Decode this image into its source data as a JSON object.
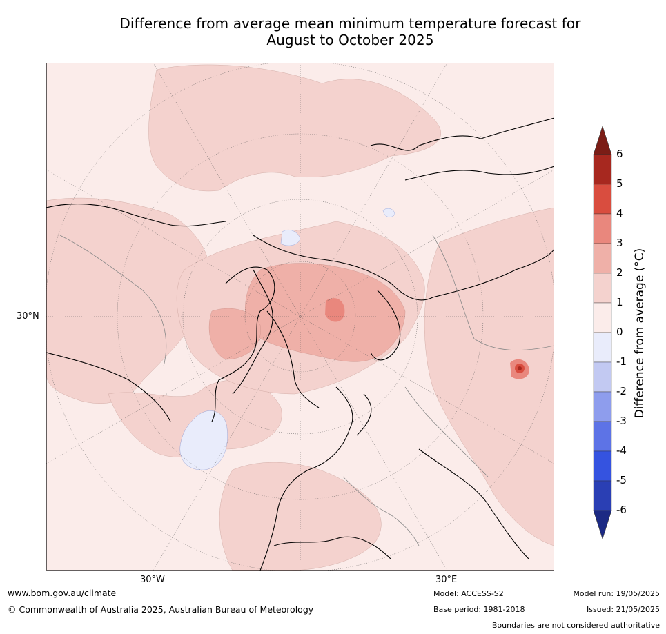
{
  "title_line1": "Difference from average mean minimum temperature forecast for",
  "title_line2": "August to October 2025",
  "map": {
    "lat_label": "30°N",
    "lon_label_w": "30°W",
    "lon_label_e": "30°E"
  },
  "colorbar": {
    "title": "Difference from average (°C)",
    "ticks": [
      "6",
      "5",
      "4",
      "3",
      "2",
      "1",
      "0",
      "-1",
      "-2",
      "-3",
      "-4",
      "-5",
      "-6"
    ],
    "colors": [
      "#a7281f",
      "#d94d3f",
      "#e9877d",
      "#efb0a8",
      "#f4d2ce",
      "#fbecea",
      "#e9ecfb",
      "#c2c9f2",
      "#8e9ded",
      "#5d73e6",
      "#3553e0",
      "#2a3fb4"
    ],
    "over_color": "#7b1d16",
    "under_color": "#1c2a84"
  },
  "footer": {
    "website": "www.bom.gov.au/climate",
    "copyright": "© Commonwealth of Australia 2025, Australian Bureau of Meteorology",
    "model": "Model: ACCESS-S2",
    "base_period": "Base period: 1981-2018",
    "model_run": "Model run: 19/05/2025",
    "issued": "Issued: 21/05/2025",
    "disclaimer": "Boundaries are not considered authoritative"
  }
}
